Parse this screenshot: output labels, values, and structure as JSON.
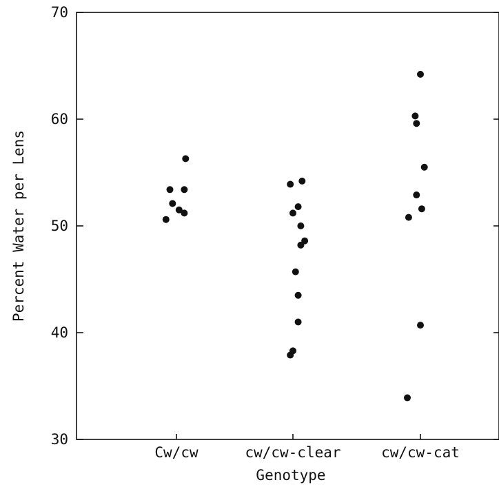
{
  "chart_data": {
    "type": "scatter",
    "title": "",
    "xlabel": "Genotype",
    "ylabel": "Percent Water per Lens",
    "categories": [
      "Cw/cw",
      "cw/cw-clear",
      "cw/cw-cat"
    ],
    "ylim": [
      30,
      70
    ],
    "yticks": [
      "30",
      "40",
      "50",
      "60",
      "70"
    ],
    "grid": false,
    "series": [
      {
        "category": "Cw/cw",
        "points": [
          {
            "offset": 0.07,
            "y": 56.3
          },
          {
            "offset": -0.05,
            "y": 53.4
          },
          {
            "offset": 0.06,
            "y": 53.4
          },
          {
            "offset": -0.03,
            "y": 52.1
          },
          {
            "offset": 0.02,
            "y": 51.5
          },
          {
            "offset": 0.06,
            "y": 51.2
          },
          {
            "offset": -0.08,
            "y": 50.6
          }
        ]
      },
      {
        "category": "cw/cw-clear",
        "points": [
          {
            "offset": 0.07,
            "y": 54.2
          },
          {
            "offset": -0.02,
            "y": 53.9
          },
          {
            "offset": 0.04,
            "y": 51.8
          },
          {
            "offset": 0.0,
            "y": 51.2
          },
          {
            "offset": 0.06,
            "y": 50.0
          },
          {
            "offset": 0.09,
            "y": 48.6
          },
          {
            "offset": 0.06,
            "y": 48.2
          },
          {
            "offset": 0.02,
            "y": 45.7
          },
          {
            "offset": 0.04,
            "y": 43.5
          },
          {
            "offset": 0.04,
            "y": 41.0
          },
          {
            "offset": 0.0,
            "y": 38.3
          },
          {
            "offset": -0.02,
            "y": 37.9
          }
        ]
      },
      {
        "category": "cw/cw-cat",
        "points": [
          {
            "offset": 0.0,
            "y": 64.2
          },
          {
            "offset": -0.04,
            "y": 60.3
          },
          {
            "offset": -0.03,
            "y": 59.6
          },
          {
            "offset": 0.03,
            "y": 55.5
          },
          {
            "offset": -0.03,
            "y": 52.9
          },
          {
            "offset": 0.01,
            "y": 51.6
          },
          {
            "offset": -0.09,
            "y": 50.8
          },
          {
            "offset": 0.0,
            "y": 40.7
          },
          {
            "offset": -0.1,
            "y": 33.9
          }
        ]
      }
    ]
  },
  "colors": {
    "points": "#111111",
    "axes": "#111111",
    "background": "#ffffff"
  }
}
